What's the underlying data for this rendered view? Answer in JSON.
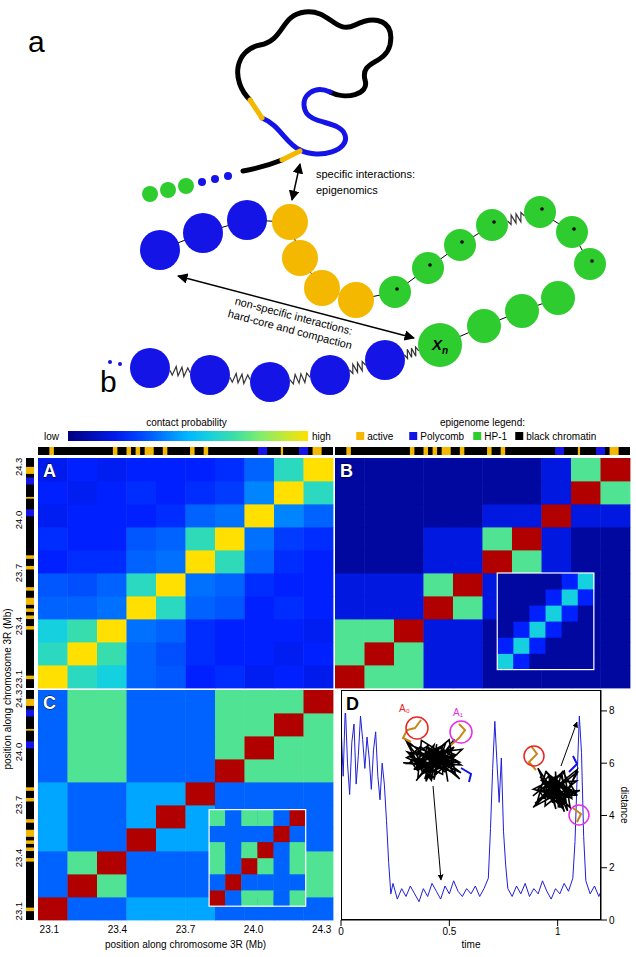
{
  "schematic": {
    "panel_labels": [
      "a",
      "b"
    ],
    "specific_interactions": [
      "specific interactions:",
      "epigenomics"
    ],
    "nonspecific_interactions": [
      "non-specific interactions:",
      "hard-core and compaction"
    ],
    "bead_label": {
      "base": "X",
      "sub": "n"
    }
  },
  "heatmaps": {
    "colorbar": {
      "title": "contact probability",
      "labels": [
        "low",
        "high"
      ],
      "range": [
        0,
        0.85
      ]
    },
    "epigenome_legend": {
      "title": "epigenome legend:",
      "states": [
        {
          "name": "active",
          "color": "#f5b800"
        },
        {
          "name": "Polycomb",
          "color": "#1414e6"
        },
        {
          "name": "HP-1",
          "color": "#2fcc2f"
        },
        {
          "name": "black chromatin",
          "color": "#000000"
        }
      ]
    },
    "epigenome": {
      "default_state": "black chromatin",
      "segments": [
        {
          "state": "active",
          "start": 23.1,
          "end": 23.12
        },
        {
          "state": "active",
          "start": 23.38,
          "end": 23.4
        },
        {
          "state": "active",
          "start": 23.44,
          "end": 23.46
        },
        {
          "state": "active",
          "start": 23.48,
          "end": 23.5
        },
        {
          "state": "active",
          "start": 23.52,
          "end": 23.56
        },
        {
          "state": "active",
          "start": 23.6,
          "end": 23.62
        },
        {
          "state": "active",
          "start": 23.72,
          "end": 23.74
        },
        {
          "state": "active",
          "start": 23.78,
          "end": 23.8
        },
        {
          "state": "Polycomb",
          "start": 24.02,
          "end": 24.06
        },
        {
          "state": "active",
          "start": 24.12,
          "end": 24.13
        },
        {
          "state": "Polycomb",
          "start": 24.2,
          "end": 24.24
        },
        {
          "state": "active",
          "start": 24.26,
          "end": 24.3
        }
      ]
    },
    "axis_label": "position along chromosome 3R (Mb)",
    "lim": [
      23.05,
      24.35
    ],
    "ticks": [
      23.1,
      23.4,
      23.7,
      {
        "value": 24,
        "label": "24.0"
      },
      24.3
    ],
    "bin_edges": [
      23.05,
      23.18,
      23.31,
      23.44,
      23.57,
      23.7,
      23.83,
      23.96,
      24.09,
      24.22,
      24.35
    ],
    "panels": [
      {
        "label": "A",
        "cells": [
          [
            0.85,
            0.55,
            0.5,
            0.3,
            0.28,
            0.2,
            0.22,
            0.18,
            0.2,
            0.17
          ],
          [
            0.55,
            0.85,
            0.58,
            0.3,
            0.27,
            0.22,
            0.2,
            0.2,
            0.18,
            0.2
          ],
          [
            0.5,
            0.58,
            0.85,
            0.32,
            0.3,
            0.22,
            0.2,
            0.2,
            0.2,
            0.18
          ],
          [
            0.3,
            0.3,
            0.32,
            0.85,
            0.55,
            0.3,
            0.28,
            0.2,
            0.22,
            0.2
          ],
          [
            0.28,
            0.27,
            0.3,
            0.55,
            0.85,
            0.32,
            0.3,
            0.22,
            0.2,
            0.2
          ],
          [
            0.2,
            0.22,
            0.22,
            0.3,
            0.32,
            0.85,
            0.56,
            0.3,
            0.22,
            0.2
          ],
          [
            0.22,
            0.2,
            0.2,
            0.28,
            0.3,
            0.56,
            0.85,
            0.32,
            0.24,
            0.22
          ],
          [
            0.18,
            0.2,
            0.2,
            0.2,
            0.22,
            0.3,
            0.32,
            0.85,
            0.35,
            0.3
          ],
          [
            0.2,
            0.18,
            0.2,
            0.22,
            0.2,
            0.22,
            0.24,
            0.35,
            0.85,
            0.55
          ],
          [
            0.17,
            0.2,
            0.18,
            0.2,
            0.2,
            0.2,
            0.22,
            0.3,
            0.55,
            0.85
          ]
        ]
      },
      {
        "label": "B",
        "cells": [
          [
            1,
            0.62,
            0.62,
            0.15,
            0.15,
            0.05,
            0.05,
            0.05,
            0.05,
            0.05
          ],
          [
            0.62,
            1,
            0.62,
            0.15,
            0.15,
            0.05,
            0.05,
            0.05,
            0.05,
            0.05
          ],
          [
            0.62,
            0.62,
            1,
            0.15,
            0.15,
            0.05,
            0.05,
            0.05,
            0.05,
            0.05
          ],
          [
            0.15,
            0.15,
            0.15,
            1,
            0.62,
            0.15,
            0.15,
            0.05,
            0.05,
            0.05
          ],
          [
            0.15,
            0.15,
            0.15,
            0.62,
            1,
            0.15,
            0.15,
            0.05,
            0.05,
            0.05
          ],
          [
            0.05,
            0.05,
            0.05,
            0.15,
            0.15,
            1,
            0.62,
            0.15,
            0.05,
            0.05
          ],
          [
            0.05,
            0.05,
            0.05,
            0.15,
            0.15,
            0.62,
            1,
            0.15,
            0.05,
            0.05
          ],
          [
            0.05,
            0.05,
            0.05,
            0.05,
            0.05,
            0.15,
            0.15,
            1,
            0.15,
            0.15
          ],
          [
            0.05,
            0.05,
            0.05,
            0.05,
            0.05,
            0.05,
            0.05,
            0.15,
            1,
            0.62
          ],
          [
            0.05,
            0.05,
            0.05,
            0.05,
            0.05,
            0.05,
            0.05,
            0.15,
            0.62,
            1
          ]
        ],
        "inset_cells": [
          [
            0.5,
            0.2,
            0.05,
            0.05,
            0.05,
            0.05
          ],
          [
            0.2,
            0.5,
            0.2,
            0.05,
            0.05,
            0.05
          ],
          [
            0.05,
            0.2,
            0.5,
            0.2,
            0.05,
            0.05
          ],
          [
            0.05,
            0.05,
            0.2,
            0.5,
            0.2,
            0.05
          ],
          [
            0.05,
            0.05,
            0.05,
            0.2,
            0.5,
            0.2
          ],
          [
            0.05,
            0.05,
            0.05,
            0.05,
            0.2,
            0.5
          ]
        ]
      },
      {
        "label": "C",
        "cells": [
          [
            1,
            0.3,
            0.3,
            0.4,
            0.4,
            0.4,
            0.3,
            0.3,
            0.3,
            0.3
          ],
          [
            0.3,
            1,
            0.62,
            0.3,
            0.3,
            0.3,
            0.62,
            0.62,
            0.62,
            0.62
          ],
          [
            0.3,
            0.62,
            1,
            0.3,
            0.3,
            0.3,
            0.62,
            0.62,
            0.62,
            0.62
          ],
          [
            0.4,
            0.3,
            0.3,
            1,
            0.4,
            0.4,
            0.3,
            0.3,
            0.3,
            0.3
          ],
          [
            0.4,
            0.3,
            0.3,
            0.4,
            1,
            0.4,
            0.3,
            0.3,
            0.3,
            0.3
          ],
          [
            0.4,
            0.3,
            0.3,
            0.4,
            0.4,
            1,
            0.3,
            0.3,
            0.3,
            0.3
          ],
          [
            0.3,
            0.62,
            0.62,
            0.3,
            0.3,
            0.3,
            1,
            0.62,
            0.62,
            0.62
          ],
          [
            0.3,
            0.62,
            0.62,
            0.3,
            0.3,
            0.3,
            0.62,
            1,
            0.62,
            0.62
          ],
          [
            0.3,
            0.62,
            0.62,
            0.3,
            0.3,
            0.3,
            0.62,
            0.62,
            1,
            0.62
          ],
          [
            0.3,
            0.62,
            0.62,
            0.3,
            0.3,
            0.3,
            0.62,
            0.62,
            0.62,
            1
          ]
        ],
        "inset_cells": [
          [
            1,
            0.3,
            0.62,
            0.62,
            0.3,
            0.62
          ],
          [
            0.3,
            1,
            0.3,
            0.3,
            0.3,
            0.3
          ],
          [
            0.62,
            0.3,
            1,
            0.62,
            0.3,
            0.62
          ],
          [
            0.62,
            0.3,
            0.62,
            1,
            0.3,
            0.62
          ],
          [
            0.3,
            0.3,
            0.3,
            0.3,
            1,
            0.3
          ],
          [
            0.62,
            0.3,
            0.62,
            0.62,
            0.3,
            1
          ]
        ]
      }
    ]
  },
  "chart_data": {
    "type": "line",
    "label": "D",
    "x_label": "time",
    "y_label": "distance",
    "color": "#1f1fd8",
    "x": [
      0,
      0.01,
      0.02,
      0.03,
      0.04,
      0.05,
      0.06,
      0.07,
      0.08,
      0.09,
      0.1,
      0.11,
      0.12,
      0.13,
      0.14,
      0.15,
      0.16,
      0.17,
      0.18,
      0.19,
      0.2,
      0.21,
      0.22,
      0.23,
      0.24,
      0.26,
      0.28,
      0.3,
      0.32,
      0.34,
      0.36,
      0.38,
      0.4,
      0.42,
      0.44,
      0.46,
      0.48,
      0.5,
      0.52,
      0.54,
      0.56,
      0.58,
      0.6,
      0.62,
      0.64,
      0.66,
      0.68,
      0.69,
      0.7,
      0.71,
      0.72,
      0.73,
      0.74,
      0.75,
      0.76,
      0.77,
      0.79,
      0.81,
      0.83,
      0.85,
      0.87,
      0.89,
      0.91,
      0.93,
      0.95,
      0.97,
      0.99,
      1.01,
      1.03,
      1.05,
      1.07,
      1.08,
      1.09,
      1.1,
      1.11,
      1.12,
      1.13,
      1.15,
      1.17,
      1.19,
      1.2
    ],
    "values": [
      7.5,
      5.5,
      8.2,
      6.0,
      4.8,
      6.8,
      7.5,
      5.2,
      6.3,
      7.8,
      6.9,
      5.8,
      7.0,
      6.2,
      5.0,
      6.5,
      7.2,
      5.5,
      4.6,
      6.0,
      5.2,
      3.8,
      2.2,
      1.0,
      1.4,
      0.8,
      1.2,
      0.9,
      1.3,
      1.0,
      0.7,
      1.2,
      0.9,
      1.4,
      1.1,
      0.8,
      1.3,
      1.0,
      1.5,
      1.1,
      0.9,
      1.2,
      1.0,
      1.3,
      0.9,
      1.2,
      1.6,
      3.5,
      5.8,
      7.6,
      6.0,
      4.5,
      6.2,
      3.4,
      2.1,
      1.2,
      0.9,
      1.3,
      1.0,
      1.4,
      0.9,
      1.2,
      1.0,
      1.5,
      1.1,
      0.8,
      1.2,
      1.0,
      1.4,
      1.1,
      1.6,
      3.0,
      5.5,
      7.8,
      6.4,
      3.2,
      1.5,
      1.0,
      1.3,
      0.9,
      1.1
    ],
    "xlim": [
      0,
      1.2
    ],
    "xticks": [
      0,
      0.5,
      1
    ],
    "ylim": [
      0,
      8.8
    ],
    "yticks": [
      0,
      2,
      4,
      6,
      8
    ],
    "annotations": [
      {
        "text": "A₀",
        "color": "#e8251f"
      },
      {
        "text": "A₁",
        "color": "#e62ee6"
      }
    ]
  }
}
